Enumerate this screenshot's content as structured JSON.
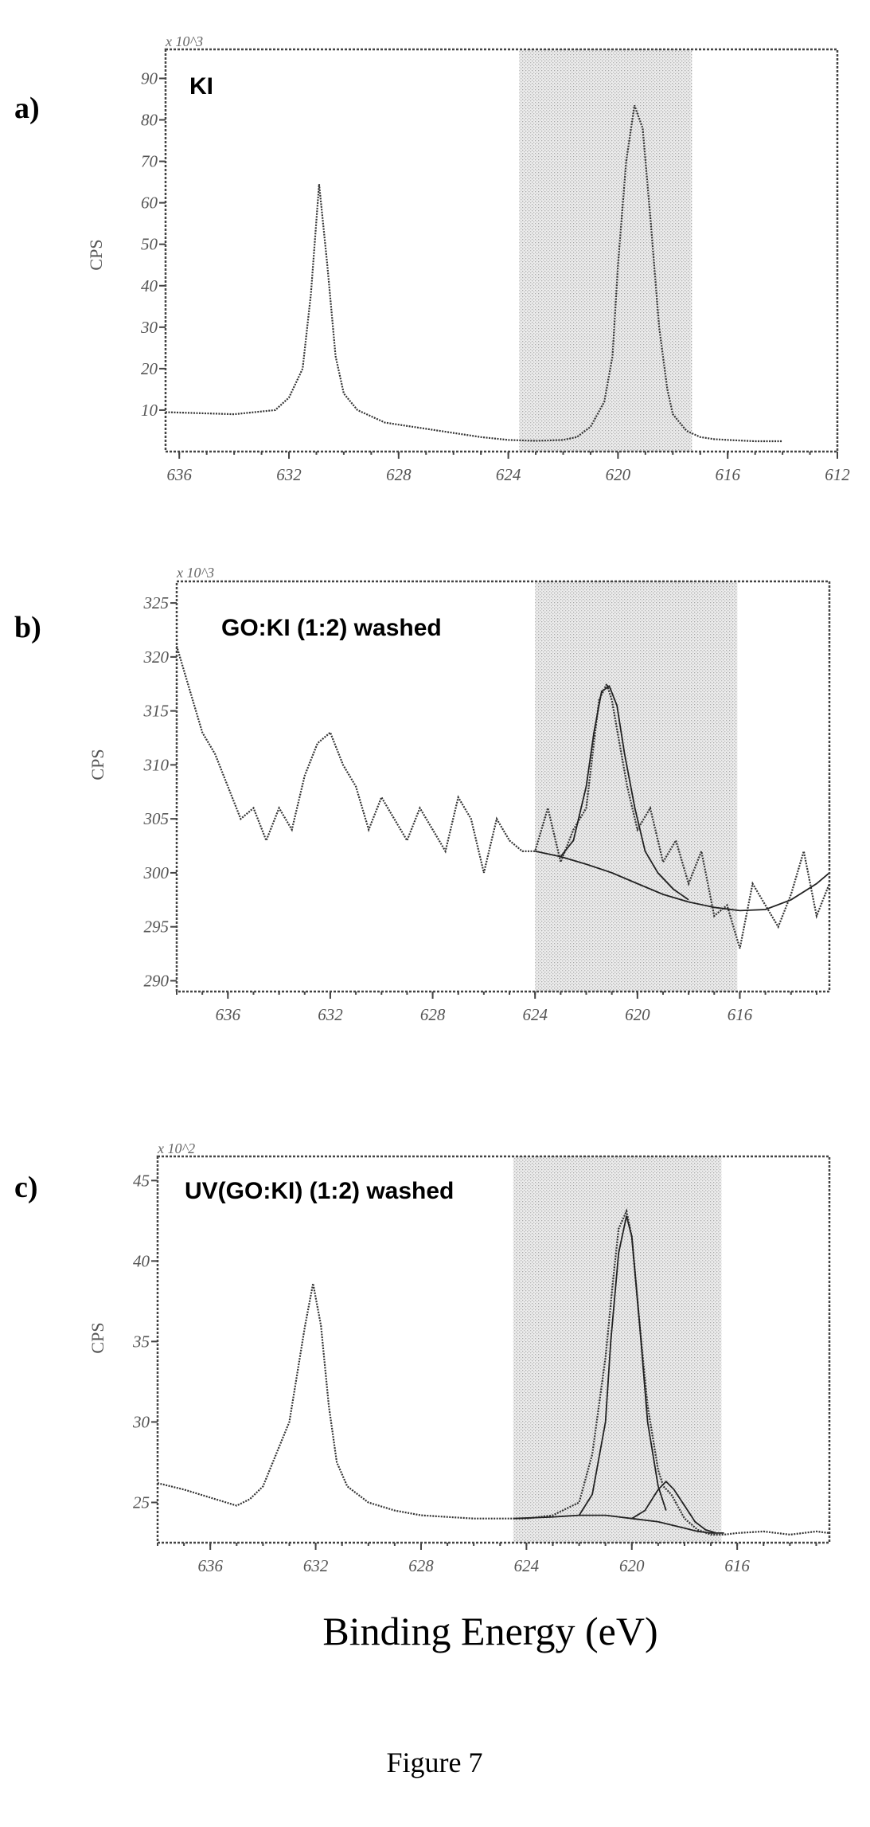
{
  "figure_caption": "Figure 7",
  "shared_xlabel": "Binding Energy (eV)",
  "chart_data": [
    {
      "type": "line",
      "panel": "a)",
      "title": "KI",
      "ylabel": "CPS",
      "y_multiplier": "x 10^3",
      "xlim": [
        636.5,
        612
      ],
      "ylim": [
        0,
        97
      ],
      "x_ticks": [
        636,
        632,
        628,
        624,
        620,
        616,
        612
      ],
      "y_ticks": [
        10,
        20,
        30,
        40,
        50,
        60,
        70,
        80,
        90
      ],
      "shaded_range": [
        623.6,
        617.3
      ],
      "peaks": [
        {
          "x": 630.9,
          "y": 64.5
        },
        {
          "x": 619.4,
          "y": 83.5
        }
      ],
      "series": [
        {
          "x": [
            636.5,
            634,
            632.5,
            632,
            631.5,
            631.2,
            630.9,
            630.6,
            630.3,
            630,
            629.5,
            628.5,
            627,
            626,
            625,
            624,
            623,
            622,
            621.5,
            621,
            620.5,
            620.2,
            620,
            619.7,
            619.4,
            619.1,
            618.8,
            618.5,
            618.2,
            618,
            617.5,
            617,
            616.5,
            616,
            615,
            614
          ],
          "y": [
            9.5,
            9.0,
            10,
            13,
            20,
            38,
            64.5,
            45,
            23,
            14,
            10,
            7,
            5.5,
            4.5,
            3.5,
            2.8,
            2.6,
            2.8,
            3.5,
            6,
            12,
            23,
            45,
            70,
            83.5,
            78,
            55,
            30,
            15,
            9,
            5,
            3.5,
            3,
            2.8,
            2.5,
            2.5
          ]
        }
      ]
    },
    {
      "type": "line",
      "panel": "b)",
      "title": "GO:KI (1:2) washed",
      "ylabel": "CPS",
      "y_multiplier": "x 10^3",
      "xlim": [
        638,
        612.5
      ],
      "ylim": [
        289,
        327
      ],
      "x_ticks": [
        636,
        632,
        628,
        624,
        620,
        616
      ],
      "y_ticks": [
        290,
        295,
        300,
        305,
        310,
        315,
        320,
        325
      ],
      "shaded_range": [
        624,
        616.1
      ],
      "peaks": [
        {
          "x": 621.3,
          "y": 317.5
        }
      ],
      "series": [
        {
          "x": [
            638,
            637.5,
            637,
            636.5,
            636,
            635.5,
            635,
            634.5,
            634,
            633.5,
            633,
            632.5,
            632,
            631.5,
            631,
            630.5,
            630,
            629.5,
            629,
            628.5,
            628,
            627.5,
            627,
            626.5,
            626,
            625.5,
            625,
            624.5,
            624,
            623.5,
            623,
            622.5,
            622,
            621.8,
            621.5,
            621.2,
            621,
            620.7,
            620.4,
            620,
            619.5,
            619,
            618.5,
            618,
            617.5,
            617,
            616.5,
            616,
            615.5,
            615,
            614.5,
            614,
            613.5,
            613,
            612.5
          ],
          "y": [
            321,
            317,
            313,
            311,
            308,
            305,
            306,
            303,
            306,
            304,
            309,
            312,
            313,
            310,
            308,
            304,
            307,
            305,
            303,
            306,
            304,
            302,
            307,
            305,
            300,
            305,
            303,
            302,
            302,
            306,
            301,
            304,
            306,
            310,
            316,
            317.5,
            316,
            312,
            308,
            304,
            306,
            301,
            303,
            299,
            302,
            296,
            297,
            293,
            299,
            297,
            295,
            298,
            302,
            296,
            299
          ]
        },
        {
          "x": [
            624,
            623,
            622,
            621,
            620,
            619,
            618,
            617,
            616,
            615,
            614,
            613,
            612.5
          ],
          "y": [
            302,
            301.5,
            300.8,
            300,
            299,
            298,
            297.3,
            296.8,
            296.5,
            296.6,
            297.5,
            299,
            300
          ]
        },
        {
          "x": [
            623,
            622.5,
            622,
            621.7,
            621.4,
            621.1,
            620.8,
            620.5,
            620.1,
            619.7,
            619.2,
            618.6,
            618
          ],
          "y": [
            301.5,
            303,
            308,
            313,
            316.8,
            317.3,
            315.5,
            311,
            306,
            302,
            300,
            298.5,
            297.5
          ]
        }
      ]
    },
    {
      "type": "line",
      "panel": "c)",
      "title": "UV(GO:KI) (1:2) washed",
      "ylabel": "CPS",
      "y_multiplier": "x 10^2",
      "xlim": [
        638,
        612.5
      ],
      "ylim": [
        22.5,
        46.5
      ],
      "x_ticks": [
        636,
        632,
        628,
        624,
        620,
        616
      ],
      "y_ticks": [
        25,
        30,
        35,
        40,
        45
      ],
      "shaded_range": [
        624.5,
        616.6
      ],
      "peaks": [
        {
          "x": 632.1,
          "y": 38.6
        },
        {
          "x": 620.2,
          "y": 43.1
        }
      ],
      "series": [
        {
          "x": [
            638,
            637,
            636,
            635,
            634.5,
            634,
            633.5,
            633,
            632.7,
            632.4,
            632.1,
            631.8,
            631.5,
            631.2,
            630.8,
            630,
            629,
            628,
            627,
            626,
            625,
            624,
            623,
            622,
            621.5,
            621,
            620.7,
            620.5,
            620.2,
            620,
            619.7,
            619.4,
            619,
            618.8,
            618.5,
            618,
            617.5,
            617,
            616.5,
            616,
            615,
            614,
            613,
            612.5
          ],
          "y": [
            26.2,
            25.8,
            25.3,
            24.8,
            25.2,
            26,
            28,
            30,
            33,
            36,
            38.6,
            36,
            31,
            27.5,
            26,
            25,
            24.5,
            24.2,
            24.1,
            24,
            24,
            24,
            24.2,
            25,
            28,
            34,
            39,
            42,
            43.1,
            41.5,
            36,
            31,
            27,
            26,
            25.5,
            24,
            23.3,
            23,
            23,
            23.1,
            23.2,
            23,
            23.2,
            23.1
          ]
        },
        {
          "x": [
            624.5,
            623,
            622,
            621,
            620,
            619,
            618.5,
            618,
            617.5,
            617,
            616.5
          ],
          "y": [
            24,
            24.1,
            24.2,
            24.2,
            24,
            23.8,
            23.6,
            23.4,
            23.2,
            23.1,
            23.1
          ]
        },
        {
          "x": [
            622,
            621.5,
            621,
            620.8,
            620.5,
            620.2,
            620,
            619.7,
            619.4,
            619,
            618.7
          ],
          "y": [
            24.2,
            25.5,
            30,
            35,
            40.5,
            42.8,
            41.5,
            36,
            30,
            26,
            24.5
          ]
        },
        {
          "x": [
            620,
            619.5,
            619,
            618.7,
            618.4,
            618,
            617.6,
            617.2,
            616.8
          ],
          "y": [
            24,
            24.5,
            25.8,
            26.3,
            25.8,
            24.8,
            23.8,
            23.3,
            23.1
          ]
        }
      ]
    }
  ]
}
